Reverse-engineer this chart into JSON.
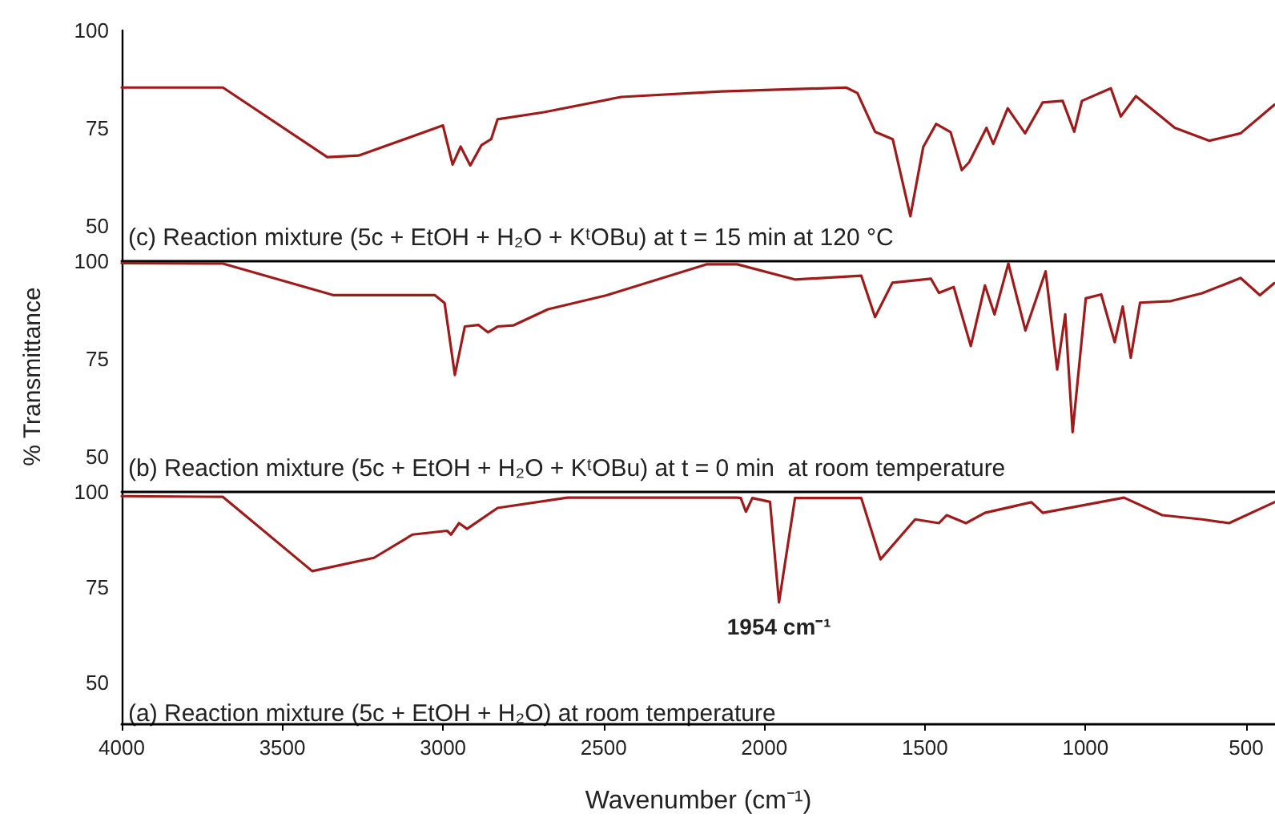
{
  "chart_data": [
    {
      "type": "line",
      "annotations": [
        "(c) Reaction mixture (5c + EtOH + H₂O + KᵗOBu) at t = 15 min at 120 °C"
      ],
      "xlim": [
        4000,
        410
      ],
      "ylim": [
        41,
        100
      ],
      "yticks": [
        50,
        75,
        100
      ],
      "xticks": [
        4000,
        3500,
        3000,
        2500,
        2000,
        1500,
        1000,
        500
      ],
      "tick_labels": "y",
      "grid": false,
      "marker": "none",
      "line_style": "solid",
      "series": [
        {
          "color": "#9e1b1b",
          "x": [
            4000,
            3685,
            3360,
            3263,
            3000,
            2970,
            2945,
            2915,
            2880,
            2850,
            2830,
            2685,
            2445,
            2133,
            1745,
            1710,
            1655,
            1600,
            1545,
            1505,
            1465,
            1420,
            1385,
            1362,
            1308,
            1287,
            1242,
            1188,
            1133,
            1071,
            1035,
            1011,
            921,
            890,
            843,
            722,
            614,
            517,
            412
          ],
          "values": [
            85.4,
            85.4,
            67.6,
            68,
            75.7,
            65.7,
            70.3,
            65.5,
            70.7,
            72.2,
            77.3,
            79.1,
            83,
            84.4,
            85.4,
            84,
            74.1,
            72.2,
            52.5,
            70.2,
            76.1,
            74,
            64.3,
            66.3,
            75.1,
            71,
            80.1,
            73.7,
            81.6,
            82,
            74.1,
            82,
            85.2,
            78,
            83.2,
            75.1,
            71.8,
            73.7,
            81
          ]
        }
      ]
    },
    {
      "type": "line",
      "annotations": [
        "(b) Reaction mixture (5c + EtOH + H₂O + KᵗOBu) at t = 0 min  at room temperature"
      ],
      "ylabel": "% Transmittance",
      "xlim": [
        4000,
        410
      ],
      "ylim": [
        41,
        100
      ],
      "yticks": [
        50,
        75,
        100
      ],
      "xticks": [
        4000,
        3500,
        3000,
        2500,
        2000,
        1500,
        1000,
        500
      ],
      "tick_labels": "y",
      "grid": false,
      "marker": "none",
      "line_style": "solid",
      "series": [
        {
          "color": "#9e1b1b",
          "x": [
            4000,
            3685,
            3340,
            3025,
            2995,
            2963,
            2932,
            2890,
            2860,
            2830,
            2780,
            2673,
            2490,
            2180,
            2084,
            1903,
            1698,
            1655,
            1601,
            1481,
            1456,
            1410,
            1357,
            1313,
            1283,
            1240,
            1187,
            1124,
            1088,
            1063,
            1040,
            999,
            951,
            909,
            884,
            859,
            830,
            734,
            637,
            517,
            457,
            412
          ],
          "values": [
            99.5,
            99.4,
            91.3,
            91.3,
            89.3,
            70.9,
            83.3,
            83.7,
            81.8,
            83.3,
            83.6,
            87.7,
            91.3,
            99.2,
            99.2,
            95.3,
            96.3,
            85.7,
            94.5,
            95.5,
            91.9,
            93.4,
            78.3,
            93.8,
            86.4,
            99.4,
            82.3,
            97.4,
            72.3,
            86.4,
            56.3,
            90.5,
            91.5,
            79.3,
            88.4,
            75.3,
            89.4,
            89.8,
            91.8,
            95.7,
            91.3,
            94.4
          ]
        }
      ]
    },
    {
      "type": "line",
      "annotations": [
        "(a) Reaction mixture (5c + EtOH + H₂O) at room temperature",
        {
          "text": "1954 cm⁻¹",
          "x": 1954,
          "y": 71
        }
      ],
      "xlabel": "Wavenumber (cm⁻¹)",
      "xlim": [
        4000,
        410
      ],
      "ylim": [
        39,
        100
      ],
      "yticks": [
        50,
        75,
        100
      ],
      "xticks": [
        4000,
        3500,
        3000,
        2500,
        2000,
        1500,
        1000,
        500
      ],
      "grid": false,
      "marker": "none",
      "line_style": "solid",
      "series": [
        {
          "color": "#9e1b1b",
          "x": [
            4000,
            3685,
            3407,
            3215,
            3095,
            2987,
            2975,
            2950,
            2925,
            2830,
            2613,
            2084,
            2073,
            2057,
            2037,
            1982,
            1954,
            1904,
            1698,
            1638,
            1530,
            1456,
            1432,
            1372,
            1313,
            1168,
            1133,
            880,
            761,
            637,
            553,
            412
          ],
          "values": [
            98.9,
            98.7,
            79.2,
            82.7,
            88.8,
            89.8,
            88.8,
            91.8,
            90.3,
            95.8,
            98.5,
            98.5,
            98.4,
            94.8,
            98.4,
            97.4,
            71,
            98.4,
            98.4,
            82.3,
            92.8,
            91.8,
            93.9,
            91.8,
            94.5,
            97.3,
            94.5,
            98.5,
            93.9,
            92.8,
            91.8,
            97.3
          ]
        }
      ]
    }
  ]
}
